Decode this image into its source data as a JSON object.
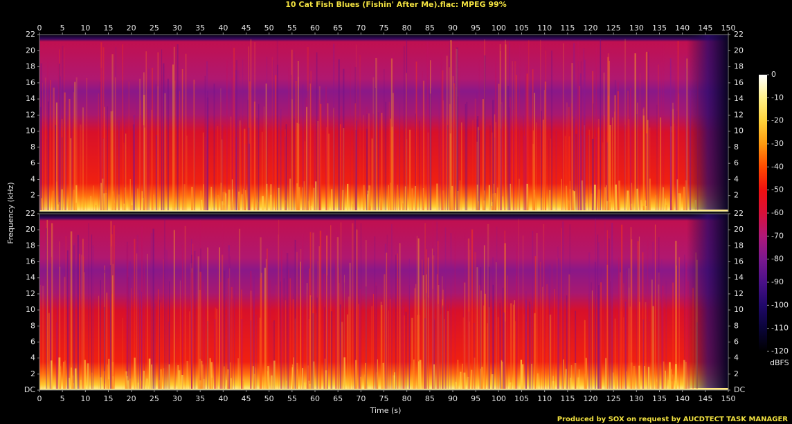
{
  "chart_data": {
    "type": "spectrogram",
    "title": "10 Cat Fish Blues (Fishin' After Me).flac: MPEG 99%",
    "xlabel": "Time (s)",
    "ylabel": "Frequency (kHz)",
    "footer": "Produced by SOX on request by AUCDTECT TASK MANAGER",
    "xlim": [
      0,
      150
    ],
    "xticks": [
      0,
      5,
      10,
      15,
      20,
      25,
      30,
      35,
      40,
      45,
      50,
      55,
      60,
      65,
      70,
      75,
      80,
      85,
      90,
      95,
      100,
      105,
      110,
      115,
      120,
      125,
      130,
      135,
      140,
      145,
      150
    ],
    "ylim": [
      0,
      22
    ],
    "yticks": [
      {
        "value": 0,
        "label": "DC"
      },
      2,
      4,
      6,
      8,
      10,
      12,
      14,
      16,
      18,
      20,
      22
    ],
    "colorbar": {
      "label": "dBFS",
      "lim": [
        -120,
        0
      ],
      "ticks": [
        0,
        -10,
        -20,
        -30,
        -40,
        -50,
        -60,
        -70,
        -80,
        -90,
        -100,
        -110,
        -120
      ],
      "colors": [
        "#ffffff",
        "#fff08a",
        "#ffd23a",
        "#ff9a10",
        "#ff4a00",
        "#f01010",
        "#d8103a",
        "#b01878",
        "#7a1890",
        "#4a1088",
        "#20086a",
        "#0a0438",
        "#000000"
      ]
    }
  }
}
